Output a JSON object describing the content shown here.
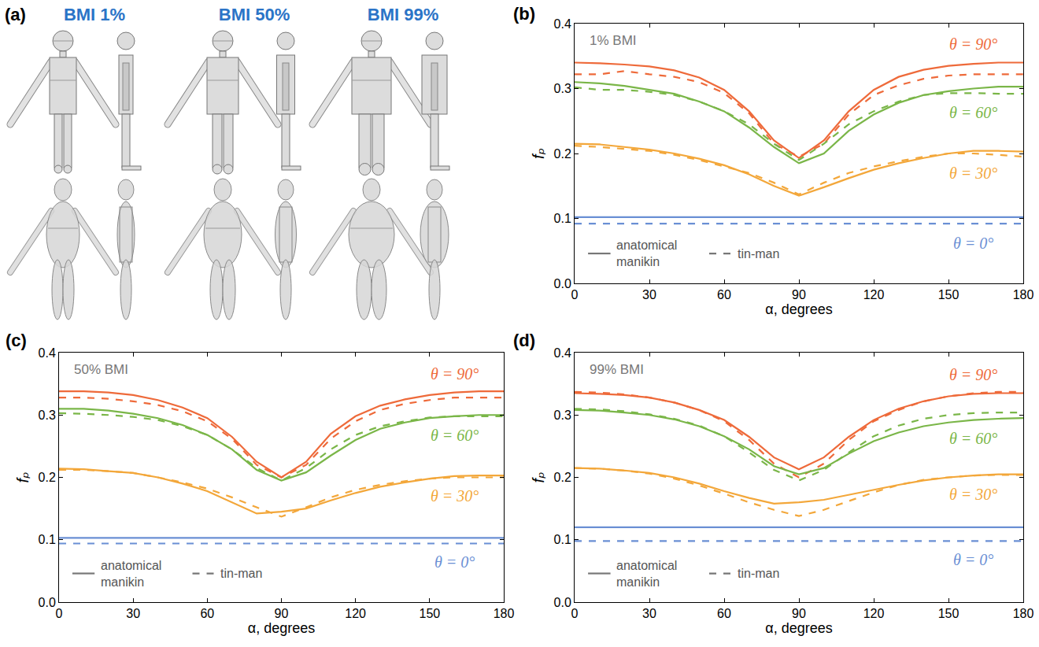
{
  "panel_a": {
    "letter": "(a)",
    "labels": [
      "BMI 1%",
      "BMI 50%",
      "BMI 99%"
    ]
  },
  "chart_data": [
    {
      "type": "line",
      "panel": "(b)",
      "title": "1% BMI",
      "x_label": "α, degrees",
      "y_label": "fₚ",
      "x": [
        0,
        10,
        20,
        30,
        40,
        50,
        60,
        70,
        80,
        90,
        100,
        110,
        120,
        130,
        140,
        150,
        160,
        170,
        180
      ],
      "xlim": [
        0,
        180
      ],
      "xticks": [
        0,
        30,
        60,
        90,
        120,
        150,
        180
      ],
      "ylim": [
        0,
        0.4
      ],
      "yticks": [
        {
          "value": 0,
          "label": "0.0"
        },
        0.1,
        0.2,
        0.3,
        0.4
      ],
      "legend": "bottom",
      "legend_entries": [
        {
          "label": "anatomical manikin",
          "line_style": "solid"
        },
        {
          "label": "tin-man",
          "line_style": "dash"
        }
      ],
      "series": [
        {
          "name": "θ = 90°",
          "group": "anatomical manikin",
          "color": "#ee6a3a",
          "line_style": "solid",
          "values": [
            0.34,
            0.339,
            0.337,
            0.334,
            0.328,
            0.317,
            0.298,
            0.265,
            0.22,
            0.193,
            0.22,
            0.265,
            0.298,
            0.318,
            0.329,
            0.335,
            0.338,
            0.34,
            0.34
          ]
        },
        {
          "name": "θ = 90°",
          "group": "tin-man",
          "color": "#ee6a3a",
          "line_style": "dash",
          "values": [
            0.322,
            0.322,
            0.327,
            0.322,
            0.318,
            0.31,
            0.293,
            0.262,
            0.215,
            0.195,
            0.215,
            0.26,
            0.29,
            0.305,
            0.315,
            0.32,
            0.322,
            0.322,
            0.322
          ]
        },
        {
          "name": "θ = 60°",
          "group": "anatomical manikin",
          "color": "#7ab648",
          "line_style": "solid",
          "values": [
            0.31,
            0.308,
            0.304,
            0.298,
            0.292,
            0.28,
            0.265,
            0.24,
            0.21,
            0.185,
            0.2,
            0.235,
            0.26,
            0.278,
            0.29,
            0.296,
            0.3,
            0.303,
            0.303
          ]
        },
        {
          "name": "θ = 60°",
          "group": "tin-man",
          "color": "#7ab648",
          "line_style": "dash",
          "values": [
            0.302,
            0.298,
            0.298,
            0.295,
            0.29,
            0.28,
            0.265,
            0.245,
            0.215,
            0.19,
            0.215,
            0.245,
            0.265,
            0.28,
            0.29,
            0.293,
            0.293,
            0.292,
            0.292
          ]
        },
        {
          "name": "θ = 30°",
          "group": "anatomical manikin",
          "color": "#f3a73a",
          "line_style": "solid",
          "values": [
            0.215,
            0.214,
            0.21,
            0.206,
            0.2,
            0.192,
            0.182,
            0.168,
            0.15,
            0.135,
            0.148,
            0.162,
            0.175,
            0.185,
            0.193,
            0.2,
            0.204,
            0.204,
            0.203
          ]
        },
        {
          "name": "θ = 30°",
          "group": "tin-man",
          "color": "#f3a73a",
          "line_style": "dash",
          "values": [
            0.212,
            0.21,
            0.207,
            0.204,
            0.198,
            0.19,
            0.18,
            0.17,
            0.155,
            0.137,
            0.155,
            0.17,
            0.18,
            0.188,
            0.195,
            0.2,
            0.2,
            0.198,
            0.195
          ]
        },
        {
          "name": "θ = 0°",
          "group": "anatomical manikin",
          "color": "#6a8fd4",
          "line_style": "solid",
          "values": [
            0.102,
            0.102,
            0.102,
            0.102,
            0.102,
            0.102,
            0.102,
            0.102,
            0.102,
            0.102,
            0.102,
            0.102,
            0.102,
            0.102,
            0.102,
            0.102,
            0.102,
            0.102,
            0.102
          ]
        },
        {
          "name": "θ = 0°",
          "group": "tin-man",
          "color": "#6a8fd4",
          "line_style": "dash",
          "values": [
            0.092,
            0.092,
            0.092,
            0.092,
            0.092,
            0.092,
            0.092,
            0.092,
            0.092,
            0.092,
            0.092,
            0.092,
            0.092,
            0.092,
            0.092,
            0.092,
            0.092,
            0.092,
            0.092
          ]
        }
      ]
    },
    {
      "type": "line",
      "panel": "(c)",
      "title": "50% BMI",
      "x_label": "α, degrees",
      "y_label": "fₚ",
      "x": [
        0,
        10,
        20,
        30,
        40,
        50,
        60,
        70,
        80,
        90,
        100,
        110,
        120,
        130,
        140,
        150,
        160,
        170,
        180
      ],
      "xlim": [
        0,
        180
      ],
      "xticks": [
        0,
        30,
        60,
        90,
        120,
        150,
        180
      ],
      "ylim": [
        0,
        0.4
      ],
      "yticks": [
        {
          "value": 0,
          "label": "0.0"
        },
        0.1,
        0.2,
        0.3,
        0.4
      ],
      "legend": "bottom",
      "legend_entries": [
        {
          "label": "anatomical manikin",
          "line_style": "solid"
        },
        {
          "label": "tin-man",
          "line_style": "dash"
        }
      ],
      "series": [
        {
          "name": "θ = 90°",
          "group": "anatomical manikin",
          "color": "#ee6a3a",
          "line_style": "solid",
          "values": [
            0.338,
            0.338,
            0.336,
            0.332,
            0.324,
            0.312,
            0.295,
            0.265,
            0.225,
            0.2,
            0.225,
            0.27,
            0.298,
            0.315,
            0.325,
            0.332,
            0.336,
            0.338,
            0.338
          ]
        },
        {
          "name": "θ = 90°",
          "group": "tin-man",
          "color": "#ee6a3a",
          "line_style": "dash",
          "values": [
            0.328,
            0.328,
            0.326,
            0.322,
            0.316,
            0.306,
            0.29,
            0.262,
            0.22,
            0.2,
            0.22,
            0.262,
            0.29,
            0.308,
            0.318,
            0.324,
            0.328,
            0.328,
            0.328
          ]
        },
        {
          "name": "θ = 60°",
          "group": "anatomical manikin",
          "color": "#7ab648",
          "line_style": "solid",
          "values": [
            0.31,
            0.31,
            0.307,
            0.302,
            0.295,
            0.284,
            0.268,
            0.245,
            0.212,
            0.195,
            0.208,
            0.235,
            0.26,
            0.278,
            0.288,
            0.295,
            0.298,
            0.3,
            0.3
          ]
        },
        {
          "name": "θ = 60°",
          "group": "tin-man",
          "color": "#7ab648",
          "line_style": "dash",
          "values": [
            0.303,
            0.302,
            0.3,
            0.297,
            0.292,
            0.282,
            0.268,
            0.245,
            0.215,
            0.195,
            0.215,
            0.245,
            0.268,
            0.282,
            0.29,
            0.296,
            0.298,
            0.298,
            0.298
          ]
        },
        {
          "name": "θ = 30°",
          "group": "anatomical manikin",
          "color": "#f3a73a",
          "line_style": "solid",
          "values": [
            0.214,
            0.213,
            0.21,
            0.207,
            0.2,
            0.19,
            0.178,
            0.16,
            0.142,
            0.145,
            0.15,
            0.163,
            0.175,
            0.185,
            0.192,
            0.198,
            0.202,
            0.203,
            0.203
          ]
        },
        {
          "name": "θ = 30°",
          "group": "tin-man",
          "color": "#f3a73a",
          "line_style": "dash",
          "values": [
            0.212,
            0.212,
            0.21,
            0.207,
            0.2,
            0.192,
            0.182,
            0.168,
            0.152,
            0.137,
            0.152,
            0.168,
            0.18,
            0.188,
            0.194,
            0.198,
            0.2,
            0.2,
            0.2
          ]
        },
        {
          "name": "θ = 0°",
          "group": "anatomical manikin",
          "color": "#6a8fd4",
          "line_style": "solid",
          "values": [
            0.103,
            0.103,
            0.103,
            0.103,
            0.103,
            0.103,
            0.103,
            0.103,
            0.103,
            0.103,
            0.103,
            0.103,
            0.103,
            0.103,
            0.103,
            0.103,
            0.103,
            0.103,
            0.103
          ]
        },
        {
          "name": "θ = 0°",
          "group": "tin-man",
          "color": "#6a8fd4",
          "line_style": "dash",
          "values": [
            0.094,
            0.094,
            0.094,
            0.094,
            0.094,
            0.094,
            0.094,
            0.094,
            0.094,
            0.094,
            0.094,
            0.094,
            0.094,
            0.094,
            0.094,
            0.094,
            0.094,
            0.094,
            0.094
          ]
        }
      ]
    },
    {
      "type": "line",
      "panel": "(d)",
      "title": "99% BMI",
      "x_label": "α, degrees",
      "y_label": "fₚ",
      "x": [
        0,
        10,
        20,
        30,
        40,
        50,
        60,
        70,
        80,
        90,
        100,
        110,
        120,
        130,
        140,
        150,
        160,
        170,
        180
      ],
      "xlim": [
        0,
        180
      ],
      "xticks": [
        0,
        30,
        60,
        90,
        120,
        150,
        180
      ],
      "ylim": [
        0,
        0.4
      ],
      "yticks": [
        {
          "value": 0,
          "label": "0.0"
        },
        0.1,
        0.2,
        0.3,
        0.4
      ],
      "legend": "bottom",
      "legend_entries": [
        {
          "label": "anatomical manikin",
          "line_style": "solid"
        },
        {
          "label": "tin-man",
          "line_style": "dash"
        }
      ],
      "series": [
        {
          "name": "θ = 90°",
          "group": "anatomical manikin",
          "color": "#ee6a3a",
          "line_style": "solid",
          "values": [
            0.335,
            0.334,
            0.332,
            0.328,
            0.32,
            0.308,
            0.292,
            0.265,
            0.232,
            0.213,
            0.232,
            0.265,
            0.292,
            0.31,
            0.322,
            0.33,
            0.334,
            0.335,
            0.335
          ]
        },
        {
          "name": "θ = 90°",
          "group": "tin-man",
          "color": "#ee6a3a",
          "line_style": "dash",
          "values": [
            0.337,
            0.336,
            0.333,
            0.328,
            0.32,
            0.308,
            0.29,
            0.26,
            0.222,
            0.2,
            0.222,
            0.26,
            0.29,
            0.308,
            0.322,
            0.33,
            0.335,
            0.337,
            0.337
          ]
        },
        {
          "name": "θ = 60°",
          "group": "anatomical manikin",
          "color": "#7ab648",
          "line_style": "solid",
          "values": [
            0.308,
            0.307,
            0.304,
            0.3,
            0.293,
            0.282,
            0.266,
            0.245,
            0.218,
            0.205,
            0.215,
            0.238,
            0.258,
            0.272,
            0.282,
            0.288,
            0.292,
            0.294,
            0.295
          ]
        },
        {
          "name": "θ = 60°",
          "group": "tin-man",
          "color": "#7ab648",
          "line_style": "dash",
          "values": [
            0.31,
            0.309,
            0.306,
            0.301,
            0.294,
            0.283,
            0.266,
            0.24,
            0.212,
            0.195,
            0.212,
            0.24,
            0.266,
            0.283,
            0.294,
            0.3,
            0.303,
            0.304,
            0.304
          ]
        },
        {
          "name": "θ = 30°",
          "group": "anatomical manikin",
          "color": "#f3a73a",
          "line_style": "solid",
          "values": [
            0.215,
            0.214,
            0.211,
            0.207,
            0.2,
            0.19,
            0.178,
            0.167,
            0.158,
            0.16,
            0.164,
            0.172,
            0.18,
            0.188,
            0.195,
            0.2,
            0.203,
            0.205,
            0.205
          ]
        },
        {
          "name": "θ = 30°",
          "group": "tin-man",
          "color": "#f3a73a",
          "line_style": "dash",
          "values": [
            0.215,
            0.214,
            0.211,
            0.206,
            0.198,
            0.187,
            0.174,
            0.16,
            0.148,
            0.138,
            0.148,
            0.162,
            0.176,
            0.188,
            0.196,
            0.2,
            0.203,
            0.204,
            0.204
          ]
        },
        {
          "name": "θ = 0°",
          "group": "anatomical manikin",
          "color": "#6a8fd4",
          "line_style": "solid",
          "values": [
            0.12,
            0.12,
            0.12,
            0.12,
            0.12,
            0.12,
            0.12,
            0.12,
            0.12,
            0.12,
            0.12,
            0.12,
            0.12,
            0.12,
            0.12,
            0.12,
            0.12,
            0.12,
            0.12
          ]
        },
        {
          "name": "θ = 0°",
          "group": "tin-man",
          "color": "#6a8fd4",
          "line_style": "dash",
          "values": [
            0.098,
            0.098,
            0.098,
            0.098,
            0.098,
            0.098,
            0.098,
            0.098,
            0.098,
            0.098,
            0.098,
            0.098,
            0.098,
            0.098,
            0.098,
            0.098,
            0.098,
            0.098,
            0.098
          ]
        }
      ]
    }
  ]
}
